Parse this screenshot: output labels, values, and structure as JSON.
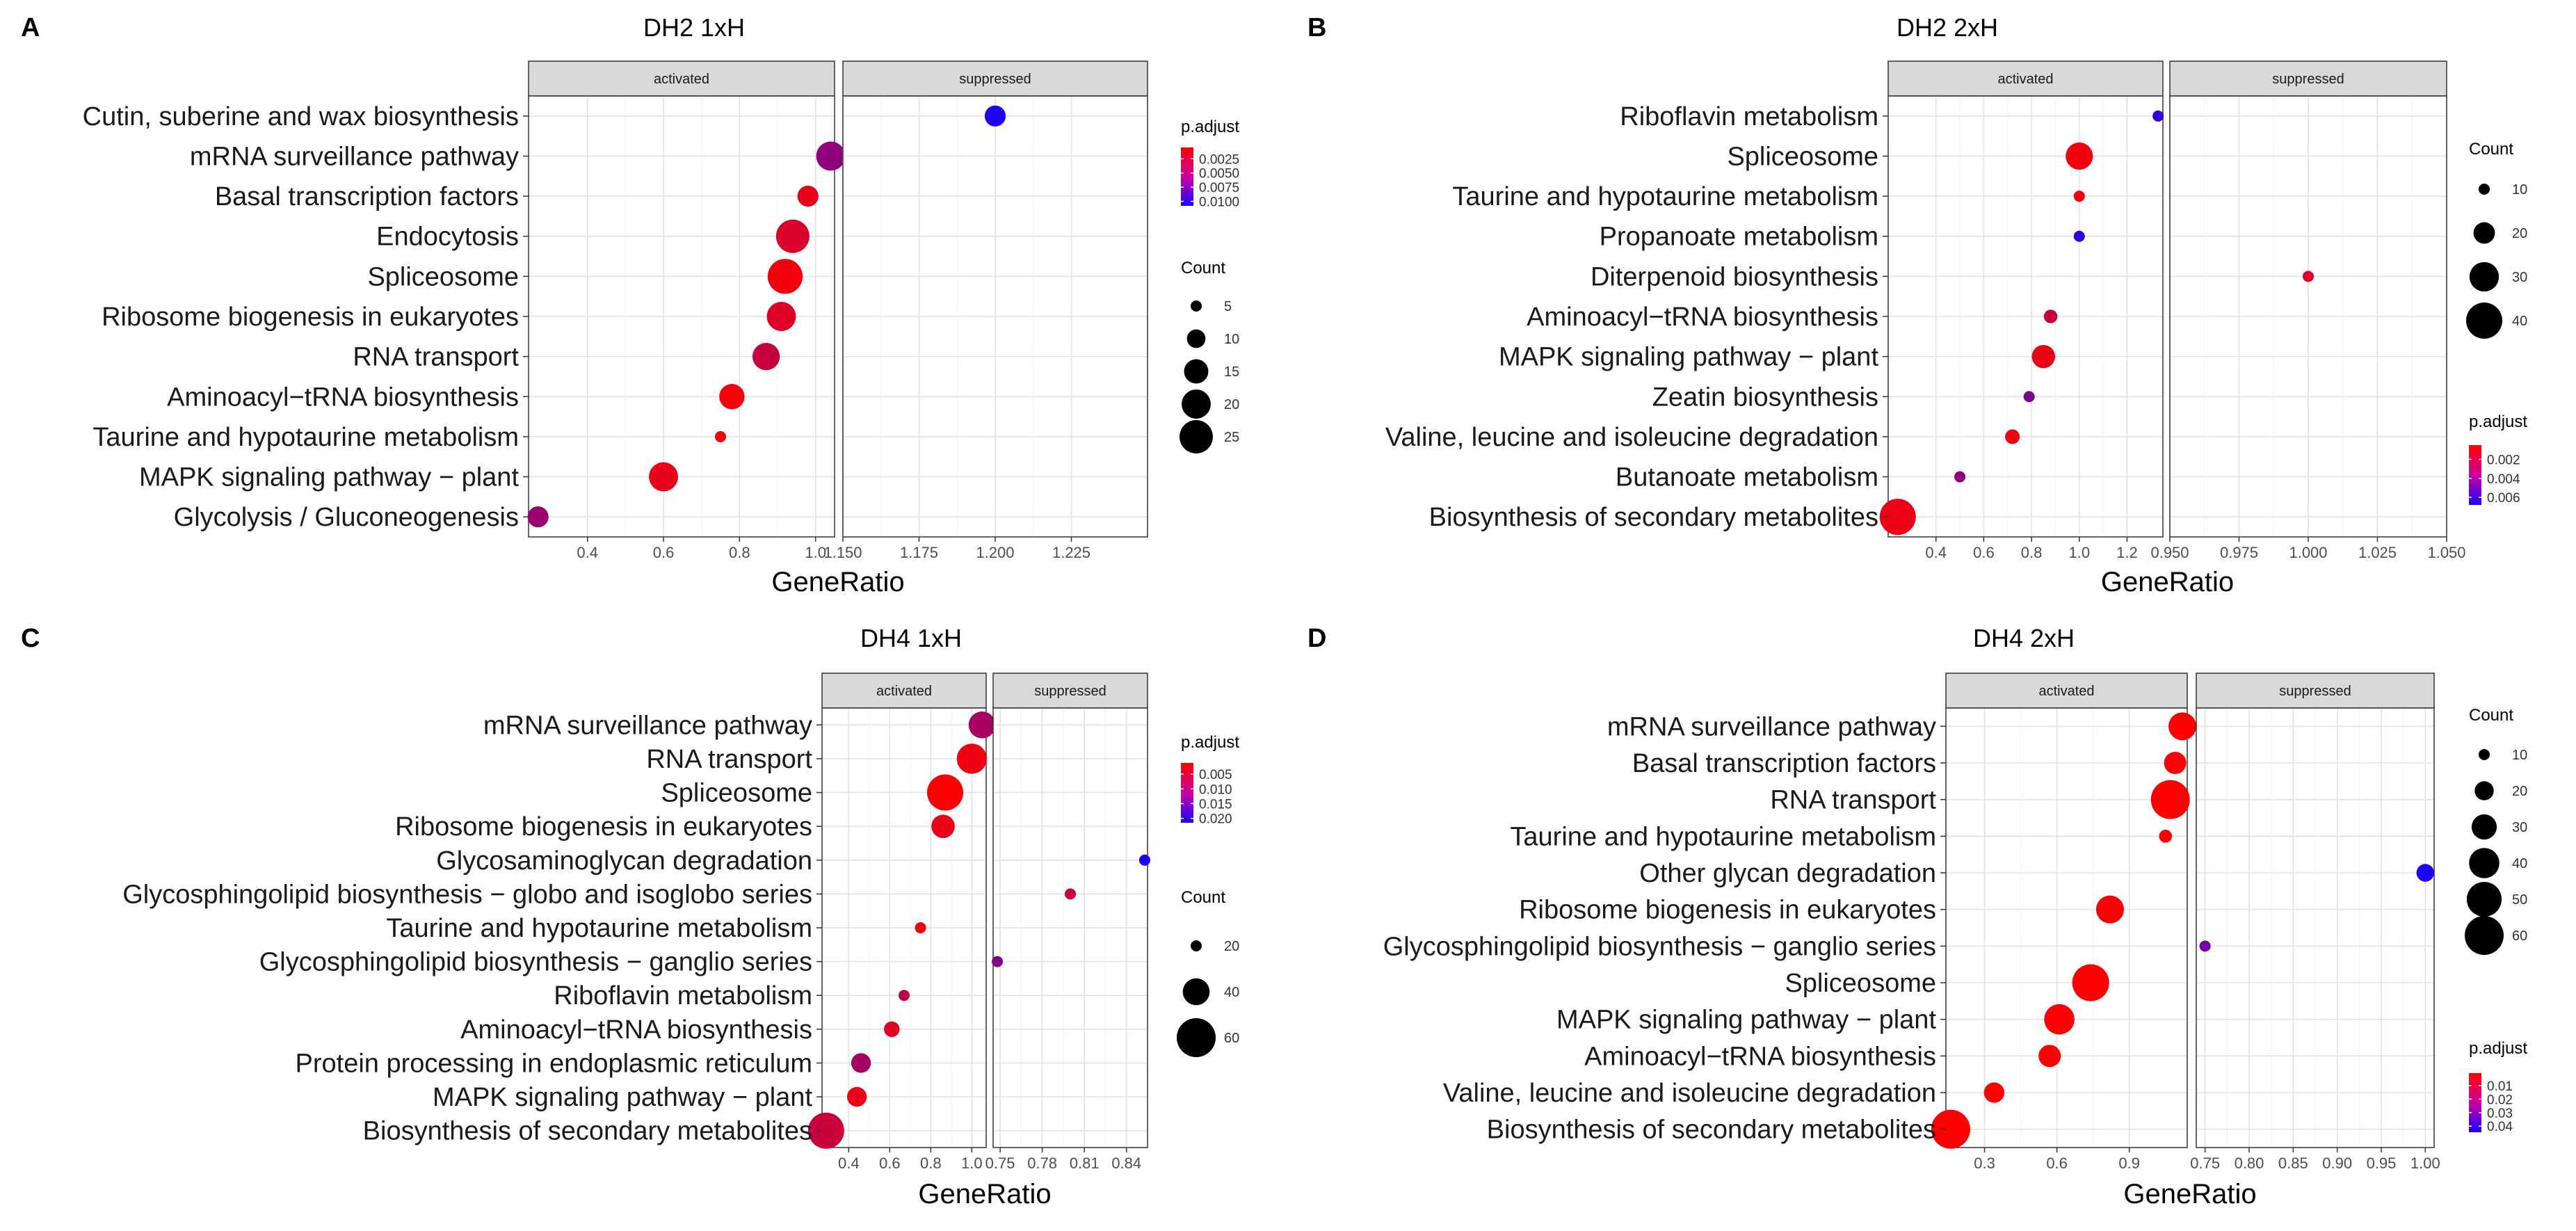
{
  "chart_data": [
    {
      "type": "scatter",
      "panel_letter": "A",
      "title": "DH2 1xH",
      "xlabel": "GeneRatio",
      "ylabel": "",
      "facets": [
        "activated",
        "suppressed"
      ],
      "y_categories": [
        "Cutin, suberine and wax biosynthesis",
        "mRNA surveillance pathway",
        "Basal transcription factors",
        "Endocytosis",
        "Spliceosome",
        "Ribosome biogenesis in eukaryotes",
        "RNA transport",
        "Aminoacyl−tRNA biosynthesis",
        "Taurine and hypotaurine metabolism",
        "MAPK signaling pathway − plant",
        "Glycolysis / Gluconeogenesis"
      ],
      "facet_axes": [
        {
          "xlim": [
            0.245,
            1.05
          ],
          "ticks": [
            0.4,
            0.6,
            0.8,
            1.0
          ],
          "tick_labels": [
            "0.4",
            "0.6",
            "0.8",
            "1.0"
          ]
        },
        {
          "xlim": [
            1.15,
            1.25
          ],
          "ticks": [
            1.15,
            1.175,
            1.2,
            1.225
          ],
          "tick_labels": [
            "1.150",
            "1.175",
            "1.200",
            "1.225"
          ]
        }
      ],
      "points": [
        {
          "facet": 0,
          "term": "mRNA surveillance pathway",
          "x": 1.04,
          "count": 20,
          "padj": 0.0055
        },
        {
          "facet": 0,
          "term": "Basal transcription factors",
          "x": 0.98,
          "count": 12,
          "padj": 0.0015
        },
        {
          "facet": 0,
          "term": "Endocytosis",
          "x": 0.94,
          "count": 25,
          "padj": 0.0022
        },
        {
          "facet": 0,
          "term": "Spliceosome",
          "x": 0.92,
          "count": 27,
          "padj": 0.001
        },
        {
          "facet": 0,
          "term": "Ribosome biogenesis in eukaryotes",
          "x": 0.91,
          "count": 20,
          "padj": 0.002
        },
        {
          "facet": 0,
          "term": "RNA transport",
          "x": 0.87,
          "count": 18,
          "padj": 0.003
        },
        {
          "facet": 0,
          "term": "Aminoacyl−tRNA biosynthesis",
          "x": 0.78,
          "count": 16,
          "padj": 0.0008
        },
        {
          "facet": 0,
          "term": "Taurine and hypotaurine metabolism",
          "x": 0.75,
          "count": 5,
          "padj": 0.0008
        },
        {
          "facet": 0,
          "term": "MAPK signaling pathway − plant",
          "x": 0.6,
          "count": 20,
          "padj": 0.0015
        },
        {
          "facet": 0,
          "term": "Glycolysis / Gluconeogenesis",
          "x": 0.27,
          "count": 12,
          "padj": 0.005
        },
        {
          "facet": 1,
          "term": "Cutin, suberine and wax biosynthesis",
          "x": 1.2,
          "count": 12,
          "padj": 0.0105
        }
      ],
      "color_legend": {
        "title": "p.adjust",
        "labels": [
          "0.0025",
          "0.0050",
          "0.0075",
          "0.0100"
        ],
        "range": [
          0.0005,
          0.0108
        ],
        "low_color": "#ff0000",
        "high_color": "#1a00ff"
      },
      "size_legend": {
        "title": "Count",
        "labels": [
          "5",
          "10",
          "15",
          "20",
          "25"
        ],
        "values": [
          5,
          10,
          15,
          20,
          25
        ]
      }
    },
    {
      "type": "scatter",
      "panel_letter": "B",
      "title": "DH2 2xH",
      "xlabel": "GeneRatio",
      "ylabel": "",
      "facets": [
        "activated",
        "suppressed"
      ],
      "y_categories": [
        "Riboflavin metabolism",
        "Spliceosome",
        "Taurine and hypotaurine metabolism",
        "Propanoate metabolism",
        "Diterpenoid biosynthesis",
        "Aminoacyl−tRNA biosynthesis",
        "MAPK signaling pathway − plant",
        "Zeatin biosynthesis",
        "Valine, leucine and isoleucine degradation",
        "Butanoate metabolism",
        "Biosynthesis of secondary metabolites"
      ],
      "facet_axes": [
        {
          "xlim": [
            0.2,
            1.35
          ],
          "ticks": [
            0.4,
            0.6,
            0.8,
            1.0,
            1.2
          ],
          "tick_labels": [
            "0.4",
            "0.6",
            "0.8",
            "1.0",
            "1.2"
          ]
        },
        {
          "xlim": [
            0.95,
            1.05
          ],
          "ticks": [
            0.95,
            0.975,
            1.0,
            1.025,
            1.05
          ],
          "tick_labels": [
            "0.950",
            "0.975",
            "1.000",
            "1.025",
            "1.050"
          ]
        }
      ],
      "points": [
        {
          "facet": 0,
          "term": "Riboflavin metabolism",
          "x": 1.33,
          "count": 8,
          "padj": 0.006
        },
        {
          "facet": 0,
          "term": "Spliceosome",
          "x": 1.0,
          "count": 27,
          "padj": 0.0008
        },
        {
          "facet": 0,
          "term": "Taurine and hypotaurine metabolism",
          "x": 1.0,
          "count": 8,
          "padj": 0.0008
        },
        {
          "facet": 0,
          "term": "Propanoate metabolism",
          "x": 1.0,
          "count": 10,
          "padj": 0.0062
        },
        {
          "facet": 0,
          "term": "Aminoacyl−tRNA biosynthesis",
          "x": 0.88,
          "count": 12,
          "padj": 0.002
        },
        {
          "facet": 0,
          "term": "MAPK signaling pathway − plant",
          "x": 0.85,
          "count": 22,
          "padj": 0.001
        },
        {
          "facet": 0,
          "term": "Zeatin biosynthesis",
          "x": 0.79,
          "count": 9,
          "padj": 0.004
        },
        {
          "facet": 0,
          "term": "Valine, leucine and isoleucine degradation",
          "x": 0.72,
          "count": 13,
          "padj": 0.001
        },
        {
          "facet": 0,
          "term": "Butanoate metabolism",
          "x": 0.5,
          "count": 7,
          "padj": 0.0035
        },
        {
          "facet": 0,
          "term": "Biosynthesis of secondary metabolites",
          "x": 0.24,
          "count": 40,
          "padj": 0.001
        },
        {
          "facet": 1,
          "term": "Diterpenoid biosynthesis",
          "x": 1.0,
          "count": 5,
          "padj": 0.0015
        }
      ],
      "color_legend": {
        "title": "p.adjust",
        "labels": [
          "0.002",
          "0.004",
          "0.006"
        ],
        "range": [
          0.0005,
          0.0068
        ],
        "low_color": "#ff0000",
        "high_color": "#1a00ff"
      },
      "size_legend": {
        "title": "Count",
        "labels": [
          "10",
          "20",
          "30",
          "40"
        ],
        "values": [
          10,
          20,
          30,
          40
        ]
      }
    },
    {
      "type": "scatter",
      "panel_letter": "C",
      "title": "DH4 1xH",
      "xlabel": "GeneRatio",
      "ylabel": "",
      "facets": [
        "activated",
        "suppressed"
      ],
      "y_categories": [
        "mRNA surveillance pathway",
        "RNA transport",
        "Spliceosome",
        "Ribosome biogenesis in eukaryotes",
        "Glycosaminoglycan degradation",
        "Glycosphingolipid biosynthesis − globo and isoglobo series",
        "Taurine and hypotaurine metabolism",
        "Glycosphingolipid biosynthesis − ganglio series",
        "Riboflavin metabolism",
        "Aminoacyl−tRNA biosynthesis",
        "Protein processing in endoplasmic reticulum",
        "MAPK signaling pathway − plant",
        "Biosynthesis of secondary metabolites"
      ],
      "facet_axes": [
        {
          "xlim": [
            0.27,
            1.07
          ],
          "ticks": [
            0.4,
            0.6,
            0.8,
            1.0
          ],
          "tick_labels": [
            "0.4",
            "0.6",
            "0.8",
            "1.0"
          ]
        },
        {
          "xlim": [
            0.745,
            0.855
          ],
          "ticks": [
            0.75,
            0.78,
            0.81,
            0.84
          ],
          "tick_labels": [
            "0.75",
            "0.78",
            "0.81",
            "0.84"
          ]
        }
      ],
      "points": [
        {
          "facet": 0,
          "term": "mRNA surveillance pathway",
          "x": 1.05,
          "count": 40,
          "padj": 0.009
        },
        {
          "facet": 0,
          "term": "RNA transport",
          "x": 1.0,
          "count": 45,
          "padj": 0.0025
        },
        {
          "facet": 0,
          "term": "Spliceosome",
          "x": 0.87,
          "count": 55,
          "padj": 0.0015
        },
        {
          "facet": 0,
          "term": "Ribosome biogenesis in eukaryotes",
          "x": 0.86,
          "count": 35,
          "padj": 0.003
        },
        {
          "facet": 0,
          "term": "Taurine and hypotaurine metabolism",
          "x": 0.75,
          "count": 10,
          "padj": 0.002
        },
        {
          "facet": 0,
          "term": "Riboflavin metabolism",
          "x": 0.67,
          "count": 15,
          "padj": 0.007
        },
        {
          "facet": 0,
          "term": "Aminoacyl−tRNA biosynthesis",
          "x": 0.61,
          "count": 25,
          "padj": 0.004
        },
        {
          "facet": 0,
          "term": "Protein processing in endoplasmic reticulum",
          "x": 0.46,
          "count": 30,
          "padj": 0.009
        },
        {
          "facet": 0,
          "term": "MAPK signaling pathway − plant",
          "x": 0.44,
          "count": 30,
          "padj": 0.003
        },
        {
          "facet": 0,
          "term": "Biosynthesis of secondary metabolites",
          "x": 0.29,
          "count": 55,
          "padj": 0.006
        },
        {
          "facet": 1,
          "term": "Glycosaminoglycan degradation",
          "x": 0.853,
          "count": 15,
          "padj": 0.0215
        },
        {
          "facet": 1,
          "term": "Glycosphingolipid biosynthesis − globo and isoglobo series",
          "x": 0.8,
          "count": 15,
          "padj": 0.006
        },
        {
          "facet": 1,
          "term": "Glycosphingolipid biosynthesis − ganglio series",
          "x": 0.748,
          "count": 8,
          "padj": 0.012
        }
      ],
      "color_legend": {
        "title": "p.adjust",
        "labels": [
          "0.005",
          "0.010",
          "0.015",
          "0.020"
        ],
        "range": [
          0.0012,
          0.0215
        ],
        "low_color": "#ff0000",
        "high_color": "#1a00ff"
      },
      "size_legend": {
        "title": "Count",
        "labels": [
          "20",
          "40",
          "60"
        ],
        "values": [
          20,
          40,
          60
        ]
      }
    },
    {
      "type": "scatter",
      "panel_letter": "D",
      "title": "DH4 2xH",
      "xlabel": "GeneRatio",
      "ylabel": "",
      "facets": [
        "activated",
        "suppressed"
      ],
      "y_categories": [
        "mRNA surveillance pathway",
        "Basal transcription factors",
        "RNA transport",
        "Taurine and hypotaurine metabolism",
        "Other glycan degradation",
        "Ribosome biogenesis in eukaryotes",
        "Glycosphingolipid biosynthesis − ganglio series",
        "Spliceosome",
        "MAPK signaling pathway − plant",
        "Aminoacyl−tRNA biosynthesis",
        "Valine, leucine and isoleucine degradation",
        "Biosynthesis of secondary metabolites"
      ],
      "facet_axes": [
        {
          "xlim": [
            0.14,
            1.14
          ],
          "ticks": [
            0.3,
            0.6,
            0.9
          ],
          "tick_labels": [
            "0.3",
            "0.6",
            "0.9"
          ]
        },
        {
          "xlim": [
            0.74,
            1.01
          ],
          "ticks": [
            0.75,
            0.8,
            0.85,
            0.9,
            0.95,
            1.0
          ],
          "tick_labels": [
            "0.75",
            "0.80",
            "0.85",
            "0.90",
            "0.95",
            "1.00"
          ]
        }
      ],
      "points": [
        {
          "facet": 0,
          "term": "mRNA surveillance pathway",
          "x": 1.12,
          "count": 35,
          "padj": 0.0012
        },
        {
          "facet": 0,
          "term": "Basal transcription factors",
          "x": 1.09,
          "count": 25,
          "padj": 0.0015
        },
        {
          "facet": 0,
          "term": "RNA transport",
          "x": 1.07,
          "count": 60,
          "padj": 0.001
        },
        {
          "facet": 0,
          "term": "Taurine and hypotaurine metabolism",
          "x": 1.05,
          "count": 12,
          "padj": 0.001
        },
        {
          "facet": 0,
          "term": "Ribosome biogenesis in eukaryotes",
          "x": 0.82,
          "count": 35,
          "padj": 0.001
        },
        {
          "facet": 0,
          "term": "Spliceosome",
          "x": 0.74,
          "count": 55,
          "padj": 0.001
        },
        {
          "facet": 0,
          "term": "MAPK signaling pathway − plant",
          "x": 0.61,
          "count": 40,
          "padj": 0.001
        },
        {
          "facet": 0,
          "term": "Aminoacyl−tRNA biosynthesis",
          "x": 0.57,
          "count": 25,
          "padj": 0.001
        },
        {
          "facet": 0,
          "term": "Valine, leucine and isoleucine degradation",
          "x": 0.34,
          "count": 22,
          "padj": 0.001
        },
        {
          "facet": 0,
          "term": "Biosynthesis of secondary metabolites",
          "x": 0.16,
          "count": 60,
          "padj": 0.001
        },
        {
          "facet": 1,
          "term": "Other glycan degradation",
          "x": 1.0,
          "count": 18,
          "padj": 0.044
        },
        {
          "facet": 1,
          "term": "Glycosphingolipid biosynthesis − ganglio series",
          "x": 0.75,
          "count": 10,
          "padj": 0.028
        }
      ],
      "color_legend": {
        "title": "p.adjust",
        "labels": [
          "0.01",
          "0.02",
          "0.03",
          "0.04"
        ],
        "range": [
          0.0008,
          0.0445
        ],
        "low_color": "#ff0000",
        "high_color": "#1a00ff"
      },
      "size_legend": {
        "title": "Count",
        "labels": [
          "10",
          "20",
          "30",
          "40",
          "50",
          "60"
        ],
        "values": [
          10,
          20,
          30,
          40,
          50,
          60
        ]
      }
    }
  ]
}
